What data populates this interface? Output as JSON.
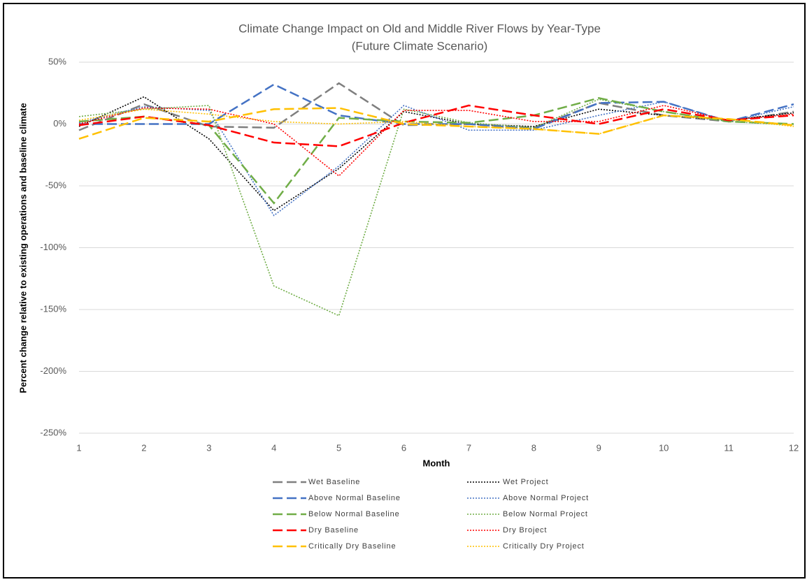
{
  "chart_data": {
    "type": "line",
    "title": "Climate Change Impact on Old and Middle River Flows by Year-Type",
    "subtitle": "(Future Climate Scenario)",
    "x_label": "Month",
    "y_label": "Percent change relative to existing operations and baseline climate",
    "x": [
      1,
      2,
      3,
      4,
      5,
      6,
      7,
      8,
      9,
      10,
      11,
      12
    ],
    "xlim": [
      1,
      12
    ],
    "xticks": [
      1,
      2,
      3,
      4,
      5,
      6,
      7,
      8,
      9,
      10,
      11,
      12
    ],
    "ylim": [
      -250,
      50
    ],
    "yticks": [
      {
        "value": -250,
        "label": "-250%"
      },
      {
        "value": -200,
        "label": "-200%"
      },
      {
        "value": -150,
        "label": "-150%"
      },
      {
        "value": -100,
        "label": "-100%"
      },
      {
        "value": -50,
        "label": "-50%"
      },
      {
        "value": 0,
        "label": "0%"
      },
      {
        "value": 50,
        "label": "50%"
      }
    ],
    "grid": true,
    "legend": "bottom",
    "series": [
      {
        "name": "Wet Baseline",
        "color": "#7f7f7f",
        "dash": "dashed",
        "values": [
          -5,
          16,
          -2,
          -3,
          33,
          -1,
          0,
          -3,
          17,
          7,
          2,
          10
        ]
      },
      {
        "name": "Wet Project",
        "color": "#000000",
        "dash": "dotted",
        "values": [
          -2,
          22,
          -12,
          -70,
          -36,
          10,
          0,
          -2,
          12,
          7,
          3,
          9
        ]
      },
      {
        "name": "Above Normal Baseline",
        "color": "#4472c4",
        "dash": "dashed",
        "values": [
          0,
          0,
          0,
          32,
          7,
          0,
          0,
          -4,
          17,
          18,
          2,
          16
        ]
      },
      {
        "name": "Above Normal Project",
        "color": "#4472c4",
        "dash": "dotted",
        "values": [
          1,
          14,
          11,
          -74,
          -34,
          15,
          -5,
          -5,
          7,
          18,
          2,
          14
        ]
      },
      {
        "name": "Below Normal Baseline",
        "color": "#70ad47",
        "dash": "dashed",
        "values": [
          2,
          6,
          -1,
          -64,
          5,
          2,
          1,
          7,
          21,
          10,
          2,
          0
        ]
      },
      {
        "name": "Below Normal Project",
        "color": "#70ad47",
        "dash": "dotted",
        "values": [
          6,
          12,
          15,
          -131,
          -155,
          12,
          1,
          -3,
          20,
          10,
          2,
          -1
        ]
      },
      {
        "name": "Dry Baseline",
        "color": "#ff0000",
        "dash": "dashed",
        "values": [
          -1,
          6,
          -1,
          -15,
          -18,
          1,
          15,
          7,
          0,
          12,
          3,
          7
        ]
      },
      {
        "name": "Dry Broject",
        "color": "#ff0000",
        "dash": "dotted",
        "values": [
          0,
          13,
          12,
          0,
          -42,
          11,
          11,
          2,
          2,
          15,
          3,
          8
        ]
      },
      {
        "name": "Critically Dry Baseline",
        "color": "#ffc000",
        "dash": "dashed",
        "values": [
          -12,
          5,
          2,
          12,
          13,
          0,
          -2,
          -4,
          -8,
          7,
          4,
          -1
        ]
      },
      {
        "name": "Critically Dry Project",
        "color": "#ffc000",
        "dash": "dotted",
        "values": [
          3,
          12,
          8,
          2,
          0,
          2,
          -2,
          -4,
          -8,
          7,
          4,
          -2
        ]
      }
    ]
  }
}
